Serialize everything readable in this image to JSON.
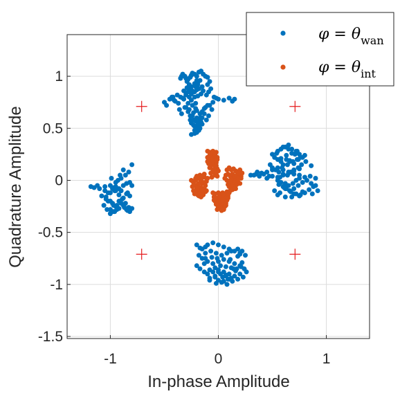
{
  "chart_data": {
    "type": "scatter",
    "xlabel": "In-phase Amplitude",
    "ylabel": "Quadrature Amplitude",
    "xlim": [
      -1.4,
      1.4
    ],
    "ylim": [
      -1.52,
      1.4
    ],
    "xticks": [
      -1,
      0,
      1
    ],
    "xtick_labels": [
      "-1",
      "0",
      "1"
    ],
    "yticks": [
      -1.5,
      -1,
      -0.5,
      0,
      0.5,
      1
    ],
    "ytick_labels": [
      "-1.5",
      "-1",
      "-0.5",
      "0",
      "0.5",
      "1"
    ],
    "grid": true,
    "legend_position": "top-right",
    "colors": {
      "wan": "#0072bd",
      "int": "#d95319",
      "reference": "#e41a1c"
    },
    "legend": [
      {
        "symbol": "φ = θ",
        "sub": "wan",
        "color": "#0072bd"
      },
      {
        "symbol": "φ = θ",
        "sub": "int",
        "color": "#d95319"
      }
    ],
    "reference_points": {
      "marker": "+",
      "x": [
        -0.71,
        0.71,
        -0.71,
        0.71
      ],
      "y": [
        0.71,
        0.71,
        -0.71,
        -0.71
      ]
    },
    "series": [
      {
        "color": "#0072bd",
        "x": [
          -0.5,
          -0.45,
          -0.42,
          -0.38,
          -0.35,
          -0.32,
          -0.3,
          -0.28,
          -0.27,
          -0.25,
          -0.22,
          -0.2,
          -0.18,
          -0.15,
          -0.1,
          -0.08,
          -0.4,
          -0.37,
          -0.33,
          -0.3,
          -0.26,
          -0.24,
          -0.21,
          -0.19,
          -0.17,
          -0.35,
          -0.34,
          -0.33,
          -0.31,
          -0.3,
          -0.29,
          -0.28,
          -0.26,
          -0.25,
          -0.24,
          -0.22,
          -0.2,
          -0.18,
          -0.16,
          -0.14,
          -0.12,
          -0.1,
          -0.25,
          -0.22,
          -0.2,
          -0.19,
          -0.3,
          -0.27,
          -0.24,
          -0.28,
          -0.26,
          -0.23,
          -0.21,
          -0.23,
          -0.2,
          -0.25,
          -0.22,
          -0.2,
          -0.18,
          -0.22,
          -0.04,
          -0.02,
          0.0,
          0.05,
          0.1,
          0.13,
          0.15,
          -0.05,
          -0.15,
          -0.13,
          -0.11,
          -0.09,
          -0.43,
          -0.41,
          -0.48,
          -0.32,
          -0.29,
          -0.27,
          -0.19,
          -0.16,
          -0.14,
          -0.11,
          -0.09,
          -0.07,
          -0.12,
          -0.1,
          -0.36,
          -0.34,
          -0.31,
          -0.28,
          -0.25,
          -0.22,
          -0.21,
          -0.2,
          -0.17,
          -0.15,
          -0.13,
          -0.08,
          -0.06,
          -0.24,
          -0.21,
          -0.19,
          -0.17,
          -0.26,
          -0.23,
          -0.21,
          -0.2,
          -0.18,
          -0.16,
          -0.25,
          -0.2,
          -0.17,
          -0.15,
          -0.22,
          -0.19,
          -0.17,
          -0.2,
          -0.17,
          -0.15,
          -0.12,
          -0.1,
          -0.05,
          0.0,
          0.05,
          0.1,
          0.15,
          0.2,
          0.25,
          0.22,
          0.18,
          0.12,
          0.08,
          0.03,
          -0.02,
          -0.07,
          -0.12,
          -0.18,
          -0.15,
          -0.1,
          -0.05,
          0.0,
          0.05,
          0.1,
          0.15,
          0.2,
          0.17,
          0.12,
          0.07,
          0.02,
          -0.03,
          -0.08,
          -0.13,
          -0.1,
          -0.05,
          0.0,
          0.05,
          0.1,
          0.15,
          0.12,
          0.07,
          0.02,
          -0.03,
          -0.08,
          0.0,
          0.05,
          0.1,
          0.03,
          0.08,
          0.13,
          0.18,
          0.23,
          0.2,
          0.24,
          0.26,
          -0.17,
          -0.13,
          -0.06,
          -0.01,
          0.04,
          0.09,
          0.16,
          0.21,
          -0.08,
          -0.03,
          0.11,
          0.2,
          0.22,
          -0.2,
          -0.12,
          0.18,
          0.0,
          0.07,
          -0.02,
          0.14,
          0.3,
          0.35,
          0.38,
          0.4,
          0.45,
          0.5,
          0.55,
          0.6,
          0.65,
          0.7,
          0.75,
          0.8,
          0.85,
          0.9,
          0.55,
          0.58,
          0.62,
          0.65,
          0.68,
          0.72,
          0.75,
          0.78,
          0.5,
          0.52,
          0.55,
          0.58,
          0.6,
          0.63,
          0.66,
          0.7,
          0.73,
          0.76,
          0.8,
          0.48,
          0.5,
          0.53,
          0.56,
          0.6,
          0.64,
          0.67,
          0.7,
          0.74,
          0.77,
          0.81,
          0.86,
          0.55,
          0.58,
          0.62,
          0.65,
          0.69,
          0.72,
          0.75,
          0.6,
          0.63,
          0.66,
          0.7,
          0.74,
          0.78,
          0.82,
          0.86,
          0.9,
          0.45,
          0.5,
          0.55,
          0.6,
          0.65,
          0.7,
          0.75,
          0.52,
          0.57,
          0.62,
          0.67,
          0.72,
          0.59,
          0.64,
          0.69,
          0.74,
          0.55,
          0.62,
          0.7,
          0.78,
          0.63,
          0.68,
          0.73,
          0.58,
          0.66,
          0.71,
          0.56,
          0.61,
          0.75,
          0.8,
          0.84,
          0.88,
          0.92,
          0.42,
          0.47,
          0.36,
          0.33,
          0.6,
          0.65,
          0.54,
          0.68,
          0.76,
          0.62,
          0.57,
          0.87,
          -1.18,
          -1.15,
          -1.12,
          -1.1,
          -1.05,
          -1.0,
          -0.98,
          -0.95,
          -0.92,
          -0.9,
          -0.88,
          -0.85,
          -0.82,
          -0.8,
          -1.05,
          -1.02,
          -0.98,
          -0.95,
          -0.9,
          -0.85,
          -0.82,
          -1.08,
          -1.04,
          -1.0,
          -0.96,
          -0.92,
          -0.88,
          -0.84,
          -1.02,
          -0.98,
          -0.95,
          -0.92,
          -0.89,
          -0.86,
          -0.83,
          -1.0,
          -0.97,
          -0.94,
          -0.9,
          -0.87,
          -0.84,
          -0.8,
          -1.06,
          -1.03,
          -1.0,
          -0.96,
          -0.92,
          -0.88,
          -0.85,
          -0.82,
          -0.93,
          -0.9,
          -0.86,
          -0.83,
          -0.8,
          -0.99,
          -0.95,
          -0.91,
          -0.88,
          -1.04,
          -1.0,
          -0.97,
          -0.94
        ],
        "y": [
          0.75,
          0.78,
          0.8,
          0.82,
          0.8,
          0.78,
          0.82,
          0.85,
          0.8,
          0.83,
          0.85,
          0.87,
          0.88,
          0.9,
          0.92,
          0.95,
          0.76,
          0.74,
          0.79,
          0.84,
          0.88,
          0.86,
          0.9,
          0.94,
          0.96,
          0.98,
          1.0,
          1.02,
          1.0,
          0.98,
          0.95,
          0.97,
          0.99,
          1.01,
          1.03,
          1.02,
          1.0,
          1.04,
          1.05,
          1.02,
          1.0,
          0.99,
          0.9,
          0.93,
          0.96,
          0.92,
          0.7,
          0.68,
          0.72,
          0.66,
          0.62,
          0.65,
          0.69,
          0.58,
          0.6,
          0.55,
          0.52,
          0.5,
          0.48,
          0.45,
          0.8,
          0.79,
          0.78,
          0.77,
          0.79,
          0.76,
          0.78,
          0.75,
          0.6,
          0.64,
          0.58,
          0.62,
          0.8,
          0.77,
          0.72,
          0.86,
          0.89,
          0.92,
          0.81,
          0.83,
          0.86,
          0.82,
          0.85,
          0.88,
          0.7,
          0.72,
          0.68,
          0.64,
          0.7,
          0.74,
          0.77,
          0.8,
          0.74,
          0.67,
          0.64,
          0.66,
          0.69,
          0.72,
          0.68,
          0.62,
          0.57,
          0.55,
          0.6,
          0.58,
          0.53,
          0.49,
          0.47,
          0.52,
          0.56,
          0.44,
          0.46,
          0.5,
          0.54,
          0.48,
          0.51,
          0.57,
          -0.62,
          -0.65,
          -0.66,
          -0.64,
          -0.62,
          -0.6,
          -0.62,
          -0.64,
          -0.66,
          -0.68,
          -0.7,
          -0.72,
          -0.68,
          -0.66,
          -0.68,
          -0.7,
          -0.72,
          -0.7,
          -0.68,
          -0.7,
          -0.72,
          -0.75,
          -0.78,
          -0.8,
          -0.78,
          -0.76,
          -0.78,
          -0.8,
          -0.82,
          -0.85,
          -0.84,
          -0.83,
          -0.82,
          -0.84,
          -0.86,
          -0.88,
          -0.9,
          -0.88,
          -0.86,
          -0.88,
          -0.9,
          -0.92,
          -0.94,
          -0.92,
          -0.9,
          -0.92,
          -0.94,
          -0.96,
          -0.97,
          -0.95,
          -0.98,
          -1.0,
          -0.97,
          -0.95,
          -0.93,
          -0.9,
          -0.85,
          -0.88,
          -0.85,
          -0.8,
          -0.74,
          -0.75,
          -0.93,
          -0.95,
          -0.87,
          -0.83,
          -0.96,
          -0.93,
          -0.76,
          -0.71,
          -0.79,
          -0.82,
          -0.75,
          -0.73,
          -0.88,
          -0.91,
          -0.99,
          -0.85,
          0.05,
          0.06,
          0.04,
          0.07,
          0.08,
          0.1,
          0.12,
          0.1,
          0.08,
          0.06,
          0.05,
          0.03,
          0.04,
          0.02,
          0.28,
          0.3,
          0.32,
          0.34,
          0.3,
          0.28,
          0.25,
          0.22,
          0.25,
          0.22,
          0.2,
          0.18,
          0.15,
          0.2,
          0.18,
          0.16,
          0.2,
          0.22,
          0.24,
          0.15,
          0.12,
          0.1,
          0.08,
          0.06,
          0.05,
          0.08,
          0.1,
          0.12,
          0.15,
          0.18,
          0.14,
          0.0,
          -0.02,
          -0.03,
          -0.05,
          -0.03,
          0.0,
          0.02,
          -0.06,
          -0.08,
          -0.1,
          -0.08,
          -0.05,
          -0.02,
          0.0,
          -0.03,
          -0.05,
          0.02,
          0.04,
          0.03,
          0.05,
          0.07,
          0.09,
          0.11,
          -0.1,
          -0.12,
          -0.08,
          -0.11,
          -0.13,
          0.12,
          0.15,
          0.18,
          0.2,
          -0.14,
          -0.16,
          -0.13,
          -0.11,
          0.24,
          0.26,
          0.28,
          0.21,
          0.19,
          0.25,
          -0.04,
          -0.07,
          -0.15,
          -0.12,
          -0.09,
          -0.06,
          -0.1,
          0.06,
          0.04,
          0.08,
          0.05,
          0.32,
          0.3,
          0.26,
          -0.16,
          -0.14,
          -0.05,
          0.03,
          -0.13,
          -0.06,
          -0.07,
          -0.05,
          -0.08,
          -0.06,
          -0.05,
          -0.07,
          -0.1,
          -0.08,
          -0.1,
          -0.05,
          -0.03,
          -0.02,
          -0.05,
          -0.1,
          -0.12,
          -0.08,
          -0.06,
          -0.1,
          -0.13,
          -0.15,
          -0.15,
          -0.18,
          -0.12,
          -0.1,
          -0.14,
          -0.17,
          -0.12,
          -0.2,
          -0.22,
          -0.25,
          -0.2,
          -0.18,
          -0.22,
          -0.26,
          -0.28,
          -0.3,
          -0.24,
          -0.22,
          -0.26,
          -0.29,
          -0.27,
          -0.24,
          -0.28,
          -0.32,
          -0.3,
          -0.27,
          -0.24,
          -0.28,
          -0.3,
          0.0,
          0.02,
          0.05,
          0.08,
          0.15,
          0.02,
          -0.02,
          0.05,
          0.1,
          -0.16,
          -0.2,
          -0.24,
          -0.28
        ]
      },
      {
        "color": "#d95319",
        "x": [
          -0.1,
          -0.08,
          -0.06,
          -0.05,
          -0.04,
          -0.02,
          -0.1,
          -0.09,
          -0.07,
          -0.05,
          -0.03,
          -0.01,
          -0.09,
          -0.06,
          -0.04,
          -0.02,
          -0.08,
          -0.05,
          -0.03,
          -0.01,
          -0.07,
          -0.04,
          -0.02,
          0.0,
          -0.06,
          -0.03,
          -0.01,
          -0.08,
          -0.05,
          -0.02,
          -0.1,
          -0.07,
          -0.04,
          -0.01,
          -0.06,
          -0.03,
          -0.25,
          -0.23,
          -0.21,
          -0.19,
          -0.17,
          -0.15,
          -0.13,
          -0.11,
          -0.24,
          -0.22,
          -0.2,
          -0.18,
          -0.16,
          -0.14,
          -0.12,
          -0.1,
          -0.23,
          -0.2,
          -0.18,
          -0.15,
          -0.13,
          -0.11,
          -0.22,
          -0.19,
          -0.17,
          -0.14,
          -0.12,
          -0.2,
          -0.17,
          -0.15,
          -0.13,
          -0.18,
          -0.16,
          -0.14,
          -0.21,
          -0.16,
          -0.19,
          -0.15,
          0.08,
          0.1,
          0.12,
          0.14,
          0.16,
          0.18,
          0.2,
          0.22,
          0.07,
          0.09,
          0.11,
          0.13,
          0.15,
          0.17,
          0.19,
          0.21,
          0.08,
          0.1,
          0.12,
          0.14,
          0.16,
          0.18,
          0.09,
          0.11,
          0.13,
          0.15,
          0.17,
          0.1,
          0.12,
          0.14,
          0.16,
          0.11,
          0.13,
          0.15,
          0.19,
          0.21,
          0.06,
          0.2,
          -0.05,
          -0.03,
          0.0,
          0.02,
          0.04,
          0.06,
          0.08,
          0.1,
          -0.04,
          -0.02,
          0.01,
          0.03,
          0.05,
          0.07,
          0.09,
          -0.03,
          0.0,
          0.02,
          0.04,
          0.06,
          0.08,
          -0.02,
          0.01,
          0.03,
          0.05,
          0.07,
          0.0,
          0.02,
          0.04,
          0.06,
          -0.01,
          0.03,
          0.05,
          0.01,
          0.04,
          0.07,
          0.09,
          -0.04
        ],
        "y": [
          0.28,
          0.27,
          0.26,
          0.28,
          0.25,
          0.27,
          0.22,
          0.2,
          0.23,
          0.21,
          0.24,
          0.22,
          0.16,
          0.18,
          0.15,
          0.17,
          0.12,
          0.1,
          0.13,
          0.11,
          0.07,
          0.08,
          0.06,
          0.09,
          0.03,
          0.05,
          0.04,
          0.24,
          0.19,
          0.14,
          0.18,
          0.14,
          0.1,
          0.2,
          0.27,
          0.25,
          0.0,
          -0.02,
          0.02,
          -0.04,
          0.01,
          -0.03,
          0.03,
          -0.01,
          -0.06,
          -0.05,
          -0.08,
          -0.03,
          -0.07,
          -0.02,
          -0.05,
          0.02,
          -0.1,
          -0.11,
          -0.09,
          -0.12,
          -0.08,
          -0.1,
          -0.13,
          -0.14,
          -0.12,
          -0.13,
          -0.11,
          0.04,
          0.05,
          0.03,
          0.06,
          -0.15,
          -0.16,
          -0.14,
          0.0,
          0.01,
          -0.07,
          -0.09,
          0.1,
          0.12,
          0.1,
          0.11,
          0.09,
          0.08,
          0.1,
          0.07,
          0.05,
          0.06,
          0.04,
          0.06,
          0.03,
          0.05,
          0.03,
          0.04,
          0.0,
          -0.01,
          0.01,
          -0.02,
          0.0,
          -0.01,
          -0.04,
          -0.03,
          -0.05,
          -0.03,
          -0.04,
          -0.06,
          -0.07,
          -0.06,
          -0.08,
          -0.1,
          -0.09,
          -0.08,
          0.07,
          0.02,
          0.02,
          -0.03,
          -0.12,
          -0.13,
          -0.12,
          -0.14,
          -0.12,
          -0.13,
          -0.11,
          -0.12,
          -0.16,
          -0.17,
          -0.18,
          -0.17,
          -0.16,
          -0.17,
          -0.15,
          -0.2,
          -0.21,
          -0.2,
          -0.22,
          -0.2,
          -0.19,
          -0.23,
          -0.24,
          -0.25,
          -0.23,
          -0.22,
          -0.26,
          -0.27,
          -0.26,
          -0.25,
          -0.28,
          -0.29,
          -0.28,
          -0.15,
          -0.19,
          -0.24,
          -0.17,
          -0.19
        ]
      }
    ]
  }
}
